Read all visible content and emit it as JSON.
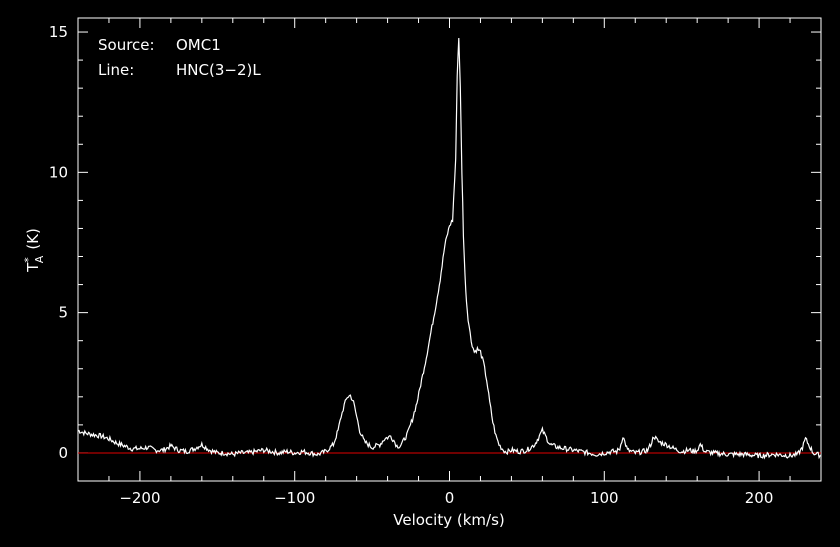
{
  "header": {
    "source_label": "Source:",
    "source_value": "OMC1",
    "line_label": "Line:",
    "line_value": "HNC(3−2)L"
  },
  "chart_data": {
    "type": "line",
    "title": "",
    "xlabel": "Velocity (km/s)",
    "ylabel_main": "T",
    "ylabel_sup": "*",
    "ylabel_sub": "A",
    "ylabel_unit": "(K)",
    "xlim": [
      -240,
      240
    ],
    "ylim": [
      -1.0,
      15.5
    ],
    "x_ticks": [
      -200,
      -100,
      0,
      100,
      200
    ],
    "y_ticks": [
      0,
      5,
      10,
      15
    ],
    "x_tick_labels": [
      "−200",
      "−100",
      "0",
      "100",
      "200"
    ],
    "y_tick_labels": [
      "0",
      "5",
      "10",
      "15"
    ],
    "baseline": 0,
    "colors": {
      "spectrum": "#ffffff",
      "baseline": "#e00000",
      "background": "#000000",
      "frame": "#ffffff"
    },
    "series": [
      {
        "x": [
          -240,
          -235,
          -230,
          -225,
          -220,
          -215,
          -210,
          -205,
          -200,
          -195,
          -190,
          -185,
          -180,
          -175,
          -170,
          -165,
          -160,
          -155,
          -150,
          -145,
          -140,
          -135,
          -130,
          -125,
          -120,
          -115,
          -110,
          -105,
          -100,
          -95,
          -90,
          -85,
          -80,
          -75,
          -72,
          -70,
          -68,
          -66,
          -64,
          -62,
          -60,
          -58,
          -55,
          -50,
          -45,
          -42,
          -40,
          -38,
          -36,
          -34,
          -32,
          -30,
          -27,
          -24,
          -21,
          -18,
          -15,
          -12,
          -9,
          -6,
          -3,
          0,
          2,
          4,
          5,
          6,
          7,
          8,
          9,
          10,
          11,
          12,
          14,
          16,
          18,
          20,
          22,
          24,
          26,
          28,
          30,
          32,
          34,
          36,
          38,
          40,
          45,
          50,
          55,
          58,
          60,
          62,
          65,
          70,
          75,
          80,
          85,
          90,
          95,
          100,
          105,
          108,
          110,
          112,
          115,
          120,
          125,
          128,
          130,
          132,
          135,
          140,
          145,
          150,
          155,
          158,
          160,
          162,
          165,
          170,
          180,
          190,
          200,
          210,
          220,
          225,
          228,
          230,
          235,
          240
        ],
        "y": [
          0.8,
          0.7,
          0.65,
          0.6,
          0.5,
          0.35,
          0.25,
          0.15,
          0.15,
          0.2,
          0.1,
          0.1,
          0.25,
          0.1,
          0.05,
          0.15,
          0.3,
          0.1,
          0.0,
          0.0,
          -0.05,
          0.0,
          0.0,
          0.05,
          0.1,
          0.05,
          0.0,
          0.05,
          0.0,
          0.05,
          0.0,
          -0.05,
          0.05,
          0.3,
          0.8,
          1.3,
          1.7,
          2.0,
          2.05,
          1.8,
          1.3,
          0.8,
          0.4,
          0.2,
          0.3,
          0.5,
          0.55,
          0.6,
          0.45,
          0.25,
          0.25,
          0.4,
          0.7,
          1.2,
          1.8,
          2.6,
          3.4,
          4.3,
          5.2,
          6.2,
          7.4,
          8.1,
          8.3,
          10.5,
          13.5,
          14.8,
          13.0,
          10.0,
          7.8,
          6.3,
          5.4,
          4.8,
          4.0,
          3.6,
          3.7,
          3.6,
          3.2,
          2.6,
          1.8,
          1.1,
          0.6,
          0.3,
          0.15,
          0.05,
          0.05,
          0.1,
          0.05,
          0.1,
          0.3,
          0.6,
          0.8,
          0.6,
          0.3,
          0.2,
          0.15,
          0.1,
          0.05,
          0.0,
          -0.05,
          0.0,
          0.05,
          0.05,
          0.15,
          0.6,
          0.1,
          0.0,
          0.05,
          0.1,
          0.3,
          0.6,
          0.4,
          0.3,
          0.15,
          0.05,
          0.1,
          0.05,
          0.1,
          0.3,
          0.05,
          0.0,
          -0.05,
          -0.05,
          -0.1,
          -0.05,
          -0.1,
          -0.05,
          0.2,
          0.5,
          0.0,
          -0.1
        ]
      }
    ]
  }
}
